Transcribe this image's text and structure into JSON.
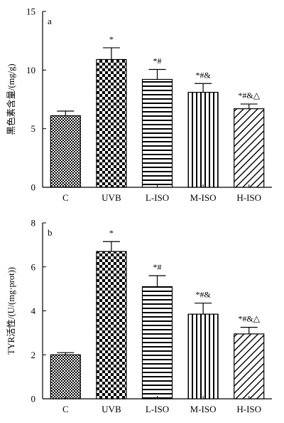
{
  "chart_data": [
    {
      "type": "bar",
      "panel_label": "a",
      "ylabel": "黑色素含量/(mg/g)",
      "categories": [
        "C",
        "UVB",
        "L-ISO",
        "M-ISO",
        "H-ISO"
      ],
      "values": [
        6.1,
        10.9,
        9.2,
        8.1,
        6.7
      ],
      "errors": [
        0.4,
        1.0,
        0.85,
        0.75,
        0.4
      ],
      "annotations": [
        "",
        "*",
        "*#",
        "*#&",
        "*#&△"
      ],
      "ylim": [
        0,
        15
      ],
      "yticks": [
        "0",
        "5",
        "10",
        "15"
      ],
      "patterns": [
        "small-checker",
        "large-checker",
        "horizontal",
        "vertical",
        "diagonal"
      ]
    },
    {
      "type": "bar",
      "panel_label": "b",
      "ylabel": "TYR活性/(U/(mg·prot))",
      "categories": [
        "C",
        "UVB",
        "L-ISO",
        "M-ISO",
        "H-ISO"
      ],
      "values": [
        2.0,
        6.7,
        5.1,
        3.85,
        2.95
      ],
      "errors": [
        0.1,
        0.45,
        0.5,
        0.5,
        0.3
      ],
      "annotations": [
        "",
        "*",
        "*#",
        "*#&",
        "*#&△"
      ],
      "ylim": [
        0,
        8
      ],
      "yticks": [
        "0",
        "2",
        "4",
        "6",
        "8"
      ],
      "patterns": [
        "small-checker",
        "large-checker",
        "horizontal",
        "vertical",
        "diagonal"
      ]
    }
  ]
}
